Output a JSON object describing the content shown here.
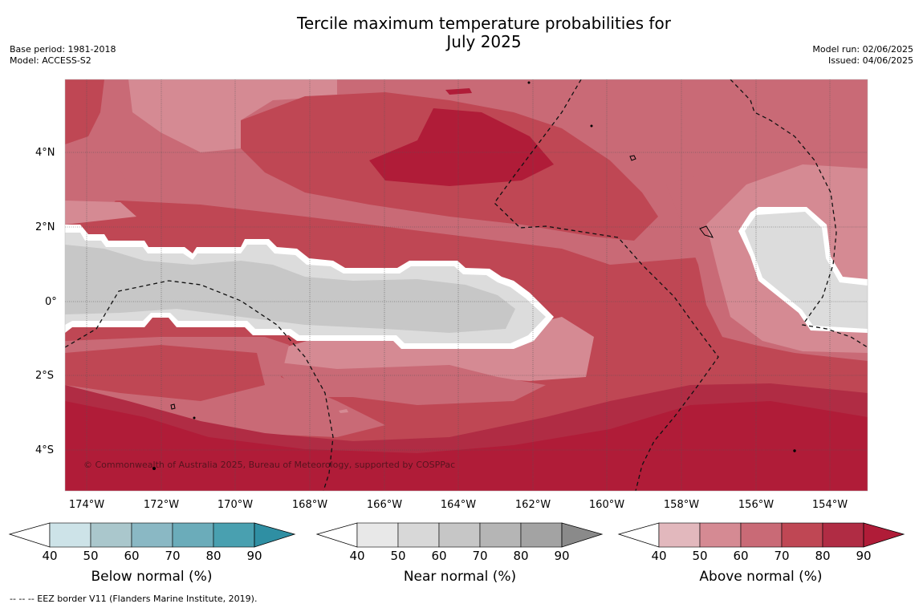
{
  "title_line1": "Tercile maximum temperature probabilities for",
  "title_line2": "July 2025",
  "meta_left": {
    "base_period": "Base period: 1981-2018",
    "model": "Model: ACCESS-S2"
  },
  "meta_right": {
    "model_run": "Model run: 02/06/2025",
    "issued": "Issued: 04/06/2025"
  },
  "map": {
    "lat_ticks": [
      "4°N",
      "2°N",
      "0°",
      "2°S",
      "4°S"
    ],
    "lon_ticks": [
      "174°W",
      "172°W",
      "170°W",
      "168°W",
      "166°W",
      "164°W",
      "162°W",
      "160°W",
      "158°W",
      "156°W",
      "154°W"
    ],
    "credit": "© Commonwealth of Australia 2025, Bureau of Meteorology, supported by COSPPac",
    "colors": {
      "above_50": "#e2b8bd",
      "above_60": "#d58a93",
      "above_70": "#c96a76",
      "above_80": "#bf4754",
      "above_90": "#b01c38",
      "near_50": "#dcdcdc",
      "near_60": "#c7c7c7",
      "near_70": "#b5b5b5"
    }
  },
  "colorbars": [
    {
      "label": "Below normal (%)",
      "ticks": [
        "40",
        "50",
        "60",
        "70",
        "80",
        "90"
      ],
      "colors": [
        "#cde3e8",
        "#aac7cc",
        "#8ab8c4",
        "#6bacba",
        "#49a0b0",
        "#2f8fa3"
      ]
    },
    {
      "label": "Near normal (%)",
      "ticks": [
        "40",
        "50",
        "60",
        "70",
        "80",
        "90"
      ],
      "colors": [
        "#e8e8e8",
        "#d8d8d8",
        "#c6c6c6",
        "#b5b5b5",
        "#a3a3a3",
        "#8a8a8a"
      ]
    },
    {
      "label": "Above normal (%)",
      "ticks": [
        "40",
        "50",
        "60",
        "70",
        "80",
        "90"
      ],
      "colors": [
        "#e2b8bd",
        "#d58a93",
        "#c96a76",
        "#bf4754",
        "#b02c44",
        "#b01c38"
      ]
    }
  ],
  "footnote": "--  --  -- EEZ border V11 (Flanders Marine Institute, 2019)."
}
